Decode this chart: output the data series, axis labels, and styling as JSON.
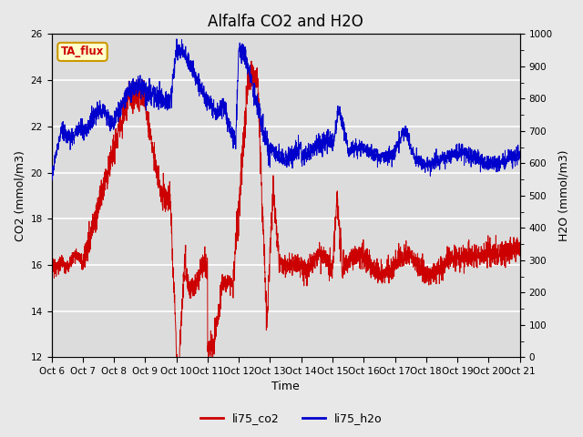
{
  "title": "Alfalfa CO2 and H2O",
  "xlabel": "Time",
  "ylabel_left": "CO2 (mmol/m3)",
  "ylabel_right": "H2O (mmol/m3)",
  "ylim_left": [
    12,
    26
  ],
  "ylim_right": [
    0,
    1000
  ],
  "yticks_left": [
    12,
    14,
    16,
    18,
    20,
    22,
    24,
    26
  ],
  "yticks_right": [
    0,
    100,
    200,
    300,
    400,
    500,
    600,
    700,
    800,
    900,
    1000
  ],
  "xtick_labels": [
    "Oct 6",
    "Oct 7",
    "Oct 8",
    "Oct 9",
    "Oct 10",
    "Oct 11",
    "Oct 12",
    "Oct 13",
    "Oct 14",
    "Oct 15",
    "Oct 16",
    "Oct 17",
    "Oct 18",
    "Oct 19",
    "Oct 20",
    "Oct 21"
  ],
  "color_co2": "#cc0000",
  "color_h2o": "#0000cc",
  "legend_label_co2": "li75_co2",
  "legend_label_h2o": "li75_h2o",
  "annotation_text": "TA_flux",
  "annotation_color_text": "#cc0000",
  "annotation_color_box": "#ffffcc",
  "annotation_color_edge": "#cc9900",
  "background_color": "#e8e8e8",
  "plot_bg_color": "#dcdcdc",
  "grid_color": "#ffffff",
  "title_fontsize": 12,
  "axis_label_fontsize": 9,
  "tick_fontsize": 7.5
}
